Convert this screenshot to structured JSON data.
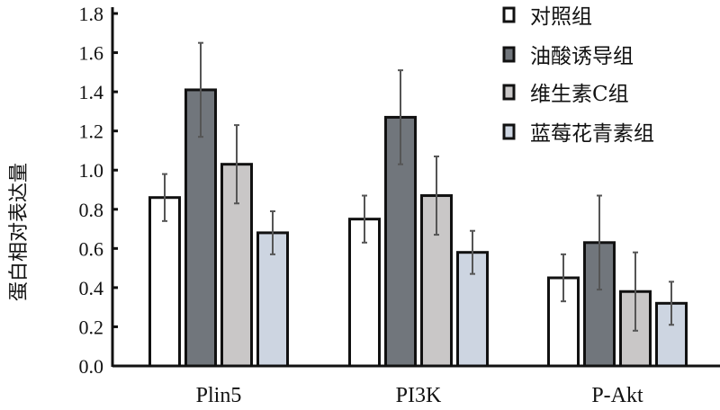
{
  "chart_data": {
    "type": "bar",
    "title": "",
    "xlabel": "",
    "ylabel": "蛋白相对表达量",
    "ylim": [
      0,
      1.8
    ],
    "yticks": [
      "0.0",
      "0.2",
      "0.4",
      "0.6",
      "0.8",
      "1.0",
      "1.2",
      "1.4",
      "1.6",
      "1.8"
    ],
    "categories": [
      "Plin5",
      "PI3K",
      "P-Akt"
    ],
    "legend_position": "top-right",
    "grid": false,
    "series": [
      {
        "name": "对照组",
        "color": "#ffffff",
        "values": [
          0.86,
          0.75,
          0.45
        ],
        "errors": [
          0.12,
          0.12,
          0.12
        ]
      },
      {
        "name": "油酸诱导组",
        "color": "#71767c",
        "values": [
          1.41,
          1.27,
          0.63
        ],
        "errors": [
          0.24,
          0.24,
          0.24
        ]
      },
      {
        "name": "维生素C组",
        "color": "#c9c7c7",
        "values": [
          1.03,
          0.87,
          0.38
        ],
        "errors": [
          0.2,
          0.2,
          0.2
        ]
      },
      {
        "name": "蓝莓花青素组",
        "color": "#cdd5e1",
        "values": [
          0.68,
          0.58,
          0.32
        ],
        "errors": [
          0.11,
          0.11,
          0.11
        ]
      }
    ]
  }
}
